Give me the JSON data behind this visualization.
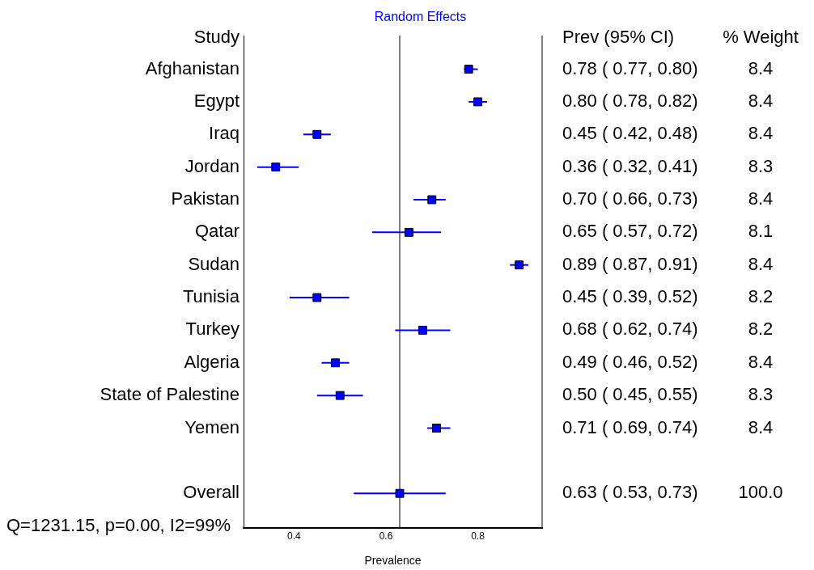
{
  "chart_data": {
    "type": "scatter",
    "orientation": "horizontal",
    "title": "Random Effects",
    "xlabel": "Prevalence",
    "ylabel": "Study",
    "categories": [
      "Afghanistan",
      "Egypt",
      "Iraq",
      "Jordan",
      "Pakistan",
      "Qatar",
      "Sudan",
      "Tunisia",
      "Turkey",
      "Algeria",
      "State of Palestine",
      "Yemen",
      null,
      "Overall"
    ],
    "series": [
      {
        "color": "#0000ff",
        "marker": "square",
        "values": [
          0.78,
          0.8,
          0.45,
          0.36,
          0.7,
          0.65,
          0.89,
          0.45,
          0.68,
          0.49,
          0.5,
          0.71,
          null,
          0.63
        ],
        "errors": [
          [
            0.77,
            0.8
          ],
          [
            0.78,
            0.82
          ],
          [
            0.42,
            0.48
          ],
          [
            0.32,
            0.41
          ],
          [
            0.66,
            0.73
          ],
          [
            0.57,
            0.72
          ],
          [
            0.87,
            0.91
          ],
          [
            0.39,
            0.52
          ],
          [
            0.62,
            0.74
          ],
          [
            0.46,
            0.52
          ],
          [
            0.45,
            0.55
          ],
          [
            0.69,
            0.74
          ],
          null,
          [
            0.53,
            0.73
          ]
        ],
        "value_labels": [
          "0.78 ( 0.77, 0.80)",
          "0.80 ( 0.78, 0.82)",
          "0.45 ( 0.42, 0.48)",
          "0.36 ( 0.32, 0.41)",
          "0.70 ( 0.66, 0.73)",
          "0.65 ( 0.57, 0.72)",
          "0.89 ( 0.87, 0.91)",
          "0.45 ( 0.39, 0.52)",
          "0.68 ( 0.62, 0.74)",
          "0.49 ( 0.46, 0.52)",
          "0.50 ( 0.45, 0.55)",
          "0.71 ( 0.69, 0.74)",
          null,
          "0.63 ( 0.53, 0.73)"
        ]
      }
    ],
    "xlim": [
      0.29,
      0.94
    ],
    "xticks": [
      0.4,
      0.6,
      0.8
    ],
    "grid": false,
    "legend": false,
    "ref_lines": [
      {
        "axis": "x",
        "value": 0.63,
        "color": "#000000"
      }
    ],
    "annotations": [
      "Prev (95% CI)",
      "% Weight",
      "Q=1231.15, p=0.00, I2=99%",
      "8.4",
      "8.4",
      "8.4",
      "8.3",
      "8.4",
      "8.1",
      "8.4",
      "8.2",
      "8.2",
      "8.4",
      "8.3",
      "8.4",
      "100.0"
    ]
  }
}
